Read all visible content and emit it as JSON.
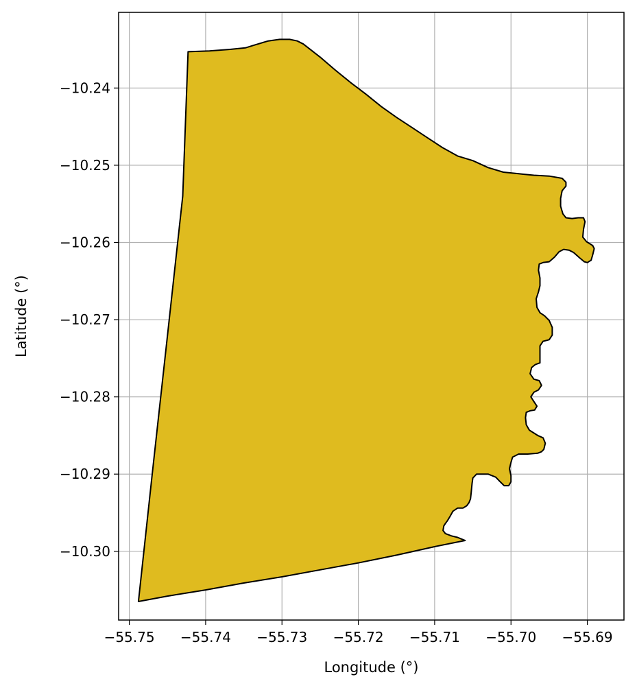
{
  "chart_data": {
    "type": "map",
    "xlabel": "Longitude (°)",
    "ylabel": "Latitude (°)",
    "xlim": [
      -55.7514,
      -55.6852
    ],
    "ylim": [
      -10.3089,
      -10.2302
    ],
    "grid": true,
    "fill_color": "#DFBB1F",
    "edge_color": "#000000",
    "grid_color": "#b0b0b0",
    "x_ticks": [
      {
        "value": -55.75,
        "label": "−55.75"
      },
      {
        "value": -55.74,
        "label": "−55.74"
      },
      {
        "value": -55.73,
        "label": "−55.73"
      },
      {
        "value": -55.72,
        "label": "−55.72"
      },
      {
        "value": -55.71,
        "label": "−55.71"
      },
      {
        "value": -55.7,
        "label": "−55.70"
      },
      {
        "value": -55.69,
        "label": "−55.69"
      }
    ],
    "y_ticks": [
      {
        "value": -10.24,
        "label": "−10.24"
      },
      {
        "value": -10.25,
        "label": "−10.25"
      },
      {
        "value": -10.26,
        "label": "−10.26"
      },
      {
        "value": -10.27,
        "label": "−10.27"
      },
      {
        "value": -10.28,
        "label": "−10.28"
      },
      {
        "value": -10.29,
        "label": "−10.29"
      },
      {
        "value": -10.3,
        "label": "−10.30"
      }
    ],
    "polygon": [
      [
        -55.7423,
        -10.2353
      ],
      [
        -55.7395,
        -10.2352
      ],
      [
        -55.7368,
        -10.235
      ],
      [
        -55.7348,
        -10.2348
      ],
      [
        -55.7335,
        -10.2344
      ],
      [
        -55.7318,
        -10.2339
      ],
      [
        -55.7303,
        -10.2337
      ],
      [
        -55.729,
        -10.2337
      ],
      [
        -55.728,
        -10.2339
      ],
      [
        -55.7272,
        -10.2343
      ],
      [
        -55.725,
        -10.236
      ],
      [
        -55.723,
        -10.2377
      ],
      [
        -55.721,
        -10.2393
      ],
      [
        -55.719,
        -10.2408
      ],
      [
        -55.717,
        -10.2424
      ],
      [
        -55.715,
        -10.2438
      ],
      [
        -55.713,
        -10.2451
      ],
      [
        -55.711,
        -10.2464
      ],
      [
        -55.709,
        -10.2477
      ],
      [
        -55.707,
        -10.2488
      ],
      [
        -55.705,
        -10.2494
      ],
      [
        -55.703,
        -10.2503
      ],
      [
        -55.701,
        -10.2509
      ],
      [
        -55.699,
        -10.2511
      ],
      [
        -55.697,
        -10.2513
      ],
      [
        -55.695,
        -10.2514
      ],
      [
        -55.6933,
        -10.2517
      ],
      [
        -55.6928,
        -10.2522
      ],
      [
        -55.6928,
        -10.2527
      ],
      [
        -55.6933,
        -10.2533
      ],
      [
        -55.6935,
        -10.2543
      ],
      [
        -55.6935,
        -10.2553
      ],
      [
        -55.6932,
        -10.2563
      ],
      [
        -55.6928,
        -10.2568
      ],
      [
        -55.692,
        -10.2569
      ],
      [
        -55.6912,
        -10.2568
      ],
      [
        -55.6905,
        -10.2568
      ],
      [
        -55.6903,
        -10.2573
      ],
      [
        -55.6905,
        -10.2583
      ],
      [
        -55.6906,
        -10.2593
      ],
      [
        -55.6901,
        -10.2599
      ],
      [
        -55.6893,
        -10.2604
      ],
      [
        -55.6891,
        -10.2608
      ],
      [
        -55.6893,
        -10.2616
      ],
      [
        -55.6895,
        -10.2623
      ],
      [
        -55.69,
        -10.2626
      ],
      [
        -55.6904,
        -10.2625
      ],
      [
        -55.691,
        -10.262
      ],
      [
        -55.6918,
        -10.2613
      ],
      [
        -55.6924,
        -10.261
      ],
      [
        -55.6931,
        -10.2609
      ],
      [
        -55.6937,
        -10.2612
      ],
      [
        -55.6943,
        -10.2619
      ],
      [
        -55.695,
        -10.2625
      ],
      [
        -55.6958,
        -10.2626
      ],
      [
        -55.6963,
        -10.2628
      ],
      [
        -55.6964,
        -10.2636
      ],
      [
        -55.6962,
        -10.2646
      ],
      [
        -55.6962,
        -10.2656
      ],
      [
        -55.6964,
        -10.2664
      ],
      [
        -55.6967,
        -10.2673
      ],
      [
        -55.6966,
        -10.2684
      ],
      [
        -55.6962,
        -10.2691
      ],
      [
        -55.6956,
        -10.2695
      ],
      [
        -55.695,
        -10.2701
      ],
      [
        -55.6946,
        -10.271
      ],
      [
        -55.6946,
        -10.272
      ],
      [
        -55.695,
        -10.2726
      ],
      [
        -55.6958,
        -10.2728
      ],
      [
        -55.6962,
        -10.2734
      ],
      [
        -55.6962,
        -10.2745
      ],
      [
        -55.6962,
        -10.2756
      ],
      [
        -55.6968,
        -10.2758
      ],
      [
        -55.6973,
        -10.2762
      ],
      [
        -55.6975,
        -10.277
      ],
      [
        -55.697,
        -10.2777
      ],
      [
        -55.6963,
        -10.2779
      ],
      [
        -55.696,
        -10.2785
      ],
      [
        -55.6964,
        -10.2791
      ],
      [
        -55.697,
        -10.2794
      ],
      [
        -55.6974,
        -10.28
      ],
      [
        -55.697,
        -10.2806
      ],
      [
        -55.6966,
        -10.2812
      ],
      [
        -55.6969,
        -10.2817
      ],
      [
        -55.6975,
        -10.2818
      ],
      [
        -55.698,
        -10.282
      ],
      [
        -55.6981,
        -10.2827
      ],
      [
        -55.698,
        -10.2836
      ],
      [
        -55.6976,
        -10.2843
      ],
      [
        -55.6965,
        -10.285
      ],
      [
        -55.6958,
        -10.2853
      ],
      [
        -55.6955,
        -10.286
      ],
      [
        -55.6957,
        -10.2868
      ],
      [
        -55.696,
        -10.2871
      ],
      [
        -55.6965,
        -10.2873
      ],
      [
        -55.6978,
        -10.2874
      ],
      [
        -55.699,
        -10.2874
      ],
      [
        -55.6998,
        -10.2878
      ],
      [
        -55.7,
        -10.2885
      ],
      [
        -55.7002,
        -10.2893
      ],
      [
        -55.7,
        -10.2902
      ],
      [
        -55.7,
        -10.291
      ],
      [
        -55.7003,
        -10.2915
      ],
      [
        -55.7009,
        -10.2915
      ],
      [
        -55.7015,
        -10.2909
      ],
      [
        -55.702,
        -10.2904
      ],
      [
        -55.703,
        -10.29
      ],
      [
        -55.7045,
        -10.29
      ],
      [
        -55.705,
        -10.2905
      ],
      [
        -55.7051,
        -10.2912
      ],
      [
        -55.7052,
        -10.2923
      ],
      [
        -55.7053,
        -10.2932
      ],
      [
        -55.7055,
        -10.2937
      ],
      [
        -55.7058,
        -10.2941
      ],
      [
        -55.7063,
        -10.2944
      ],
      [
        -55.707,
        -10.2944
      ],
      [
        -55.7076,
        -10.2948
      ],
      [
        -55.708,
        -10.2955
      ],
      [
        -55.7083,
        -10.296
      ],
      [
        -55.7086,
        -10.2964
      ],
      [
        -55.7088,
        -10.2967
      ],
      [
        -55.7089,
        -10.2973
      ],
      [
        -55.7086,
        -10.2977
      ],
      [
        -55.7078,
        -10.298
      ],
      [
        -55.707,
        -10.2982
      ],
      [
        -55.7065,
        -10.2984
      ],
      [
        -55.706,
        -10.2986
      ],
      [
        -55.71,
        -10.2994
      ],
      [
        -55.715,
        -10.3005
      ],
      [
        -55.72,
        -10.3015
      ],
      [
        -55.725,
        -10.3024
      ],
      [
        -55.73,
        -10.3033
      ],
      [
        -55.735,
        -10.3041
      ],
      [
        -55.74,
        -10.305
      ],
      [
        -55.745,
        -10.3058
      ],
      [
        -55.7488,
        -10.3065
      ],
      [
        -55.747,
        -10.29
      ],
      [
        -55.745,
        -10.272
      ],
      [
        -55.743,
        -10.254
      ],
      [
        -55.7423,
        -10.2353
      ]
    ]
  }
}
